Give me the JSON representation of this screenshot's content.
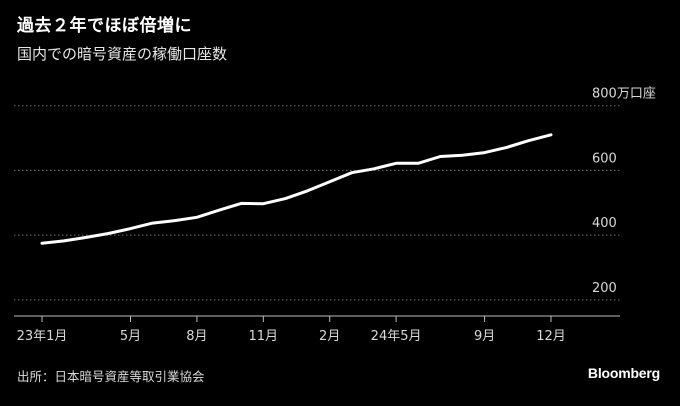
{
  "title": "過去２年でほぼ倍増に",
  "subtitle": "国内での暗号資産の稼働口座数",
  "source": "出所：日本暗号資産等取引業協会",
  "logo": "Bloomberg",
  "colors": {
    "background": "#000000",
    "line": "#ffffff",
    "grid": "#6e6e6e",
    "text": "#d9d9d9"
  },
  "chart_data": {
    "type": "line",
    "ylabel": "",
    "xlabel": "",
    "ylim": [
      150,
      830
    ],
    "grid": true,
    "y_ticks": [
      {
        "value": 800,
        "label": "800万口座"
      },
      {
        "value": 600,
        "label": "600"
      },
      {
        "value": 400,
        "label": "400"
      },
      {
        "value": 200,
        "label": "200"
      }
    ],
    "x_ticks": [
      {
        "index": 0,
        "label": "23年1月"
      },
      {
        "index": 4,
        "label": "5月"
      },
      {
        "index": 7,
        "label": "8月"
      },
      {
        "index": 10,
        "label": "11月"
      },
      {
        "index": 13,
        "label": "2月"
      },
      {
        "index": 16,
        "label": "24年5月"
      },
      {
        "index": 20,
        "label": "9月"
      },
      {
        "index": 23,
        "label": "12月"
      }
    ],
    "series": [
      {
        "values": [
          375,
          382,
          393,
          405,
          420,
          437,
          445,
          455,
          477,
          498,
          497,
          513,
          537,
          565,
          593,
          605,
          622,
          622,
          643,
          647,
          655,
          671,
          692,
          710
        ]
      }
    ]
  }
}
